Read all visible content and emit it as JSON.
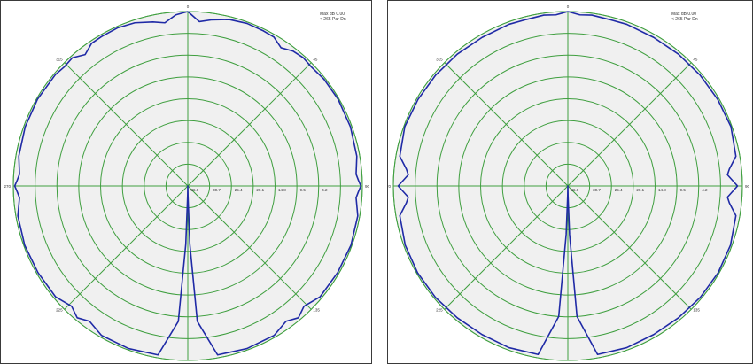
{
  "colors": {
    "plot_background": "#f0f0f0",
    "grid": "#3f9f3f",
    "trace": "#1f2aa6",
    "frame": "#3a3a3a"
  },
  "chart_data": [
    {
      "type": "polar-line",
      "header": [
        "Max dB 0.00",
        "< 265 Par Dn"
      ],
      "angle_ticks": [
        "0",
        "90",
        "180",
        "270",
        "45",
        "135",
        "225",
        "315"
      ],
      "radial_ticks": [
        "-36.0",
        "-30.7",
        "-25.4",
        "-20.1",
        "-14.8",
        "-9.5",
        "-4.2"
      ],
      "rlim": [
        -36,
        0
      ],
      "grid": true,
      "series": [
        {
          "angle_deg": [
            0,
            4,
            8,
            14,
            20,
            26,
            30,
            34,
            38,
            42,
            46,
            52,
            60,
            70,
            80,
            86,
            88,
            90,
            92,
            94,
            100,
            110,
            120,
            130,
            136,
            140,
            144,
            150,
            160,
            170,
            176,
            178,
            179,
            180,
            181,
            182,
            184,
            190,
            200,
            210,
            216,
            220,
            224,
            230,
            240,
            250,
            260,
            266,
            268,
            270,
            272,
            274,
            280,
            290,
            300,
            310,
            314,
            318,
            322,
            326,
            330,
            336,
            342,
            348,
            352,
            356,
            360
          ],
          "r_db": [
            0,
            -2,
            -1.4,
            -0.6,
            -0.3,
            -0.4,
            -0.5,
            -1.6,
            -0.7,
            -0.4,
            -0.6,
            -0.3,
            -0.2,
            -0.3,
            -0.6,
            -1.2,
            -0.8,
            -0.3,
            -0.8,
            -1.2,
            -0.4,
            -0.2,
            -0.3,
            -0.4,
            -1.5,
            -0.5,
            -1.5,
            -0.4,
            -0.3,
            -0.6,
            -8,
            -24,
            -34,
            -36,
            -34,
            -24,
            -8,
            -0.6,
            -0.3,
            -0.4,
            -1.5,
            -0.5,
            -1.5,
            -0.4,
            -0.3,
            -0.2,
            -0.4,
            -1.2,
            -0.8,
            -0.3,
            -0.8,
            -1.2,
            -0.6,
            -0.3,
            -0.2,
            -0.3,
            -0.6,
            -0.4,
            -1.6,
            -0.5,
            -0.4,
            -0.3,
            -0.6,
            -1.4,
            -2,
            -0.6,
            0
          ]
        }
      ]
    },
    {
      "type": "polar-line",
      "header": [
        "Max dB 0.00",
        "< 265 Par Dn"
      ],
      "angle_ticks": [
        "0",
        "90",
        "180",
        "270",
        "45",
        "135",
        "225",
        "315"
      ],
      "radial_ticks": [
        "-36.0",
        "-30.7",
        "-25.4",
        "-20.1",
        "-14.8",
        "-9.5",
        "-4.2"
      ],
      "rlim": [
        -36,
        0
      ],
      "grid": true,
      "series": [
        {
          "angle_deg": [
            0,
            4,
            8,
            14,
            20,
            30,
            40,
            50,
            60,
            70,
            80,
            84,
            86,
            90,
            94,
            96,
            100,
            110,
            120,
            130,
            140,
            150,
            160,
            170,
            176,
            178,
            179,
            180,
            181,
            182,
            184,
            190,
            200,
            210,
            220,
            230,
            240,
            250,
            260,
            264,
            266,
            270,
            274,
            276,
            280,
            290,
            300,
            310,
            320,
            330,
            340,
            346,
            352,
            356,
            360
          ],
          "r_db": [
            0,
            -0.6,
            -0.4,
            -0.6,
            -0.5,
            -0.6,
            -0.5,
            -0.4,
            -0.3,
            -0.2,
            -0.8,
            -2.5,
            -3,
            -1,
            -3,
            -2.5,
            -0.8,
            -0.3,
            -0.2,
            -0.3,
            -0.5,
            -0.6,
            -0.5,
            -0.7,
            -9,
            -26,
            -34,
            -36,
            -34,
            -26,
            -9,
            -0.7,
            -0.5,
            -0.6,
            -0.5,
            -0.3,
            -0.2,
            -0.3,
            -0.8,
            -2.5,
            -3,
            -1,
            -3,
            -2.5,
            -0.8,
            -0.2,
            -0.3,
            -0.4,
            -0.5,
            -0.6,
            -0.5,
            -0.6,
            -0.4,
            -0.6,
            0
          ]
        }
      ]
    }
  ]
}
